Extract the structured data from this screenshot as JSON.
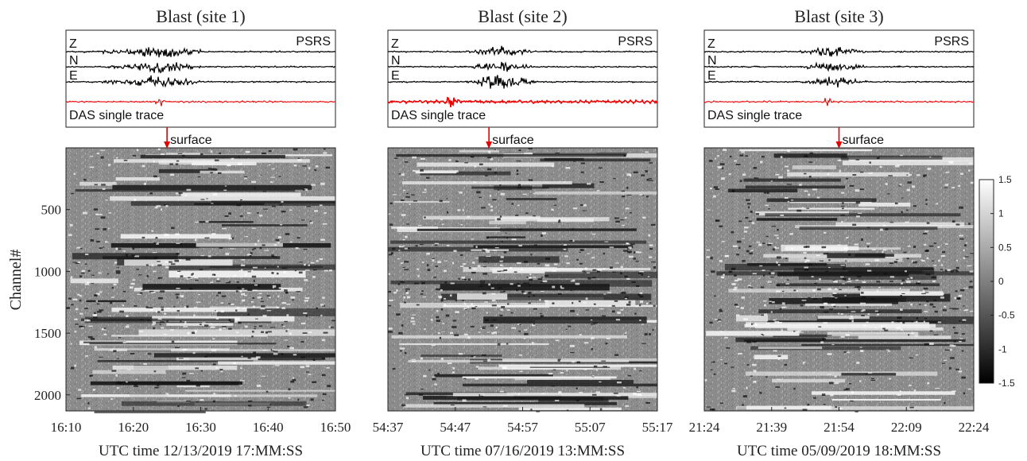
{
  "chart_data": [
    {
      "type": "heatmap",
      "title": "Blast (site 1)",
      "station_label": "PSRS",
      "components": [
        "Z",
        "N",
        "E"
      ],
      "das_label": "DAS single trace",
      "marker_label": "surface",
      "marker_time": "16:25",
      "xlabel": "UTC time 12/13/2019 17:MM:SS",
      "x_ticks": [
        "16:10",
        "16:20",
        "16:30",
        "16:40",
        "16:50"
      ],
      "ylabel": "Channel#",
      "y_ticks": [
        500,
        1000,
        1500,
        2000
      ],
      "ylim": [
        2130,
        0
      ]
    },
    {
      "type": "heatmap",
      "title": "Blast (site 2)",
      "station_label": "PSRS",
      "components": [
        "Z",
        "N",
        "E"
      ],
      "das_label": "DAS single trace",
      "marker_label": "surface",
      "marker_time": "54:52",
      "xlabel": "UTC time 07/16/2019 13:MM:SS",
      "x_ticks": [
        "54:37",
        "54:47",
        "54:57",
        "55:07",
        "55:17"
      ],
      "ylim": [
        2130,
        0
      ]
    },
    {
      "type": "heatmap",
      "title": "Blast (site 3)",
      "station_label": "PSRS",
      "components": [
        "Z",
        "N",
        "E"
      ],
      "das_label": "DAS single trace",
      "marker_label": "surface",
      "marker_time": "21:54",
      "xlabel": "UTC time 05/09/2019 18:MM:SS",
      "x_ticks": [
        "21:24",
        "21:39",
        "21:54",
        "22:09",
        "22:24"
      ],
      "ylim": [
        2130,
        0
      ]
    }
  ],
  "colorbar": {
    "ticks": [
      1.5,
      1,
      0.5,
      0,
      -0.5,
      -1,
      -1.5
    ],
    "range": [
      -1.5,
      1.5
    ]
  },
  "colors": {
    "seismometer_trace": "#000000",
    "das_trace": "#ee0000",
    "surface_arrow": "#e00000"
  }
}
